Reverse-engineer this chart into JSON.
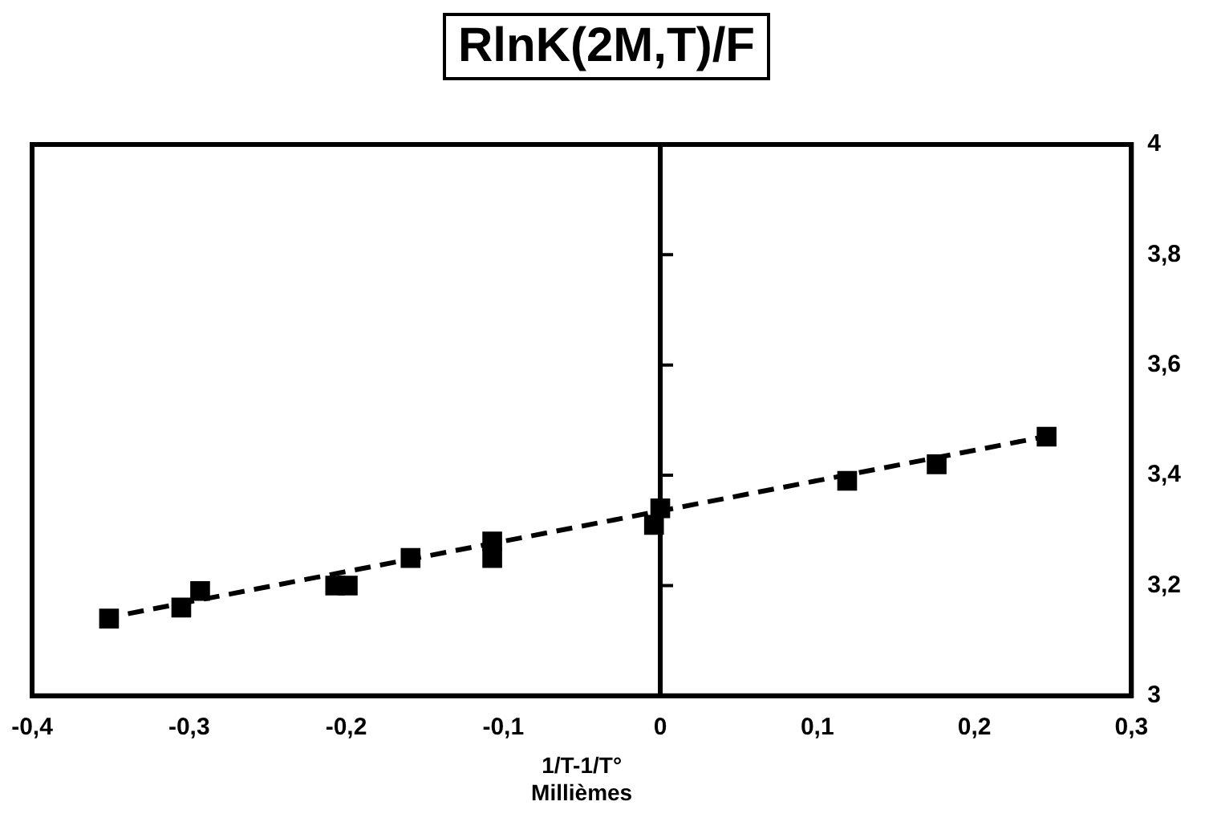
{
  "chart_data": {
    "type": "scatter",
    "title": "RlnK(2M,T)/F",
    "xlabel": "1/T-1/T°\nMillièmes",
    "xlim": [
      -0.4,
      0.3
    ],
    "xticks": [
      {
        "value": -0.4,
        "label": "-0,4"
      },
      {
        "value": -0.3,
        "label": "-0,3"
      },
      {
        "value": -0.2,
        "label": "-0,2"
      },
      {
        "value": -0.1,
        "label": "-0,1"
      },
      0,
      {
        "value": 0.1,
        "label": "0,1"
      },
      {
        "value": 0.2,
        "label": "0,2"
      },
      {
        "value": 0.3,
        "label": "0,3"
      }
    ],
    "ylim": [
      3,
      4
    ],
    "yticks": [
      3,
      {
        "value": 3.2,
        "label": "3,2"
      },
      {
        "value": 3.4,
        "label": "3,4"
      },
      {
        "value": 3.6,
        "label": "3,6"
      },
      {
        "value": 3.8,
        "label": "3,8"
      },
      4
    ],
    "grid": false,
    "legend": false,
    "marker": "square",
    "ref_lines": [
      {
        "axis": "x",
        "value": 0,
        "color": "#000000"
      }
    ],
    "series": [
      {
        "color": "#000000",
        "x": [
          -0.351,
          -0.305,
          -0.293,
          -0.207,
          -0.199,
          -0.159,
          -0.107,
          -0.107,
          -0.004,
          0.0,
          0.119,
          0.176,
          0.246
        ],
        "values": [
          3.14,
          3.16,
          3.19,
          3.2,
          3.2,
          3.25,
          3.28,
          3.25,
          3.31,
          3.34,
          3.39,
          3.42,
          3.47
        ]
      },
      {
        "type": "line",
        "color": "#000000",
        "line_style": "dashed",
        "marker": "none",
        "x": [
          -0.355,
          0.245
        ],
        "values": [
          3.14,
          3.47
        ]
      }
    ]
  }
}
